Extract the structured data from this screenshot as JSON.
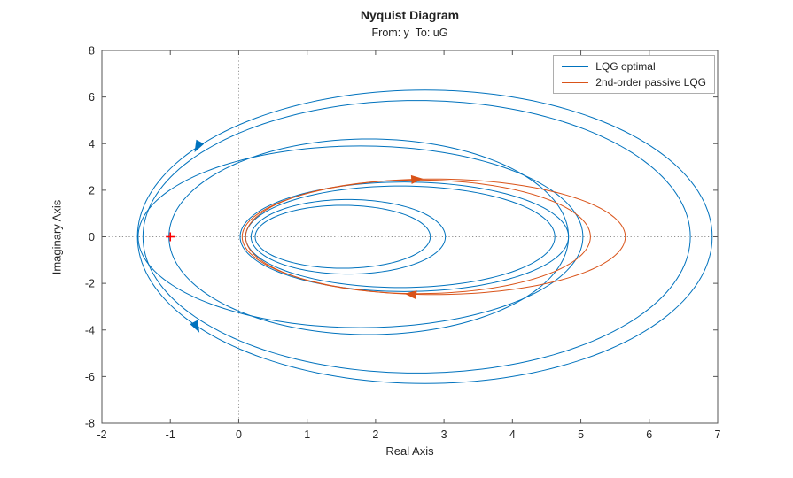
{
  "chart_data": {
    "type": "line",
    "title": "Nyquist Diagram",
    "subtitle": "From: y  To: uG",
    "xlabel": "Real Axis",
    "ylabel": "Imaginary Axis",
    "xlim": [
      -2,
      7
    ],
    "ylim": [
      -8,
      8
    ],
    "xticks": [
      -2,
      -1,
      0,
      1,
      2,
      3,
      4,
      5,
      6,
      7
    ],
    "yticks": [
      -8,
      -6,
      -4,
      -2,
      0,
      2,
      4,
      6,
      8
    ],
    "grid": false,
    "zero_lines": {
      "style": "dotted",
      "color": "#909090"
    },
    "axis_color": "#555555",
    "text_color": "#262626",
    "legend": {
      "position": "top-right",
      "entries": [
        {
          "label": "LQG optimal",
          "color": "#0072BD"
        },
        {
          "label": "2nd-order passive LQG",
          "color": "#D95319"
        }
      ]
    },
    "critical_point": {
      "x": -1,
      "y": 0,
      "marker": "+",
      "color": "#ff0000"
    },
    "series": [
      {
        "name": "LQG optimal",
        "color": "#0072BD",
        "loops": [
          {
            "cx": 2.72,
            "cy": 0,
            "rx": 4.2,
            "ry": 6.3
          },
          {
            "cx": 2.6,
            "cy": 0,
            "rx": 4.0,
            "ry": 5.85
          },
          {
            "cx": 1.9,
            "cy": 0,
            "rx": 2.92,
            "ry": 4.2
          },
          {
            "cx": 1.78,
            "cy": 0,
            "rx": 3.25,
            "ry": 3.9
          },
          {
            "cx": 2.42,
            "cy": 0,
            "rx": 2.4,
            "ry": 2.35
          },
          {
            "cx": 2.36,
            "cy": 0,
            "rx": 2.26,
            "ry": 2.18
          },
          {
            "cx": 1.6,
            "cy": 0,
            "rx": 1.42,
            "ry": 1.6
          },
          {
            "cx": 1.52,
            "cy": 0,
            "rx": 1.28,
            "ry": 1.35
          }
        ]
      },
      {
        "name": "2nd-order passive LQG",
        "color": "#D95319",
        "loops": [
          {
            "cx": 2.85,
            "cy": 0,
            "rx": 2.8,
            "ry": 2.48
          },
          {
            "cx": 2.62,
            "cy": 0,
            "rx": 2.52,
            "ry": 2.44
          }
        ]
      }
    ],
    "arrows": [
      {
        "x": -0.6,
        "y": 3.88,
        "angle": 242,
        "series": 0
      },
      {
        "x": -0.62,
        "y": -3.86,
        "angle": 298,
        "series": 0
      },
      {
        "x": 2.6,
        "y": 2.47,
        "angle": 4,
        "series": 1
      },
      {
        "x": 2.52,
        "y": -2.47,
        "angle": 174,
        "series": 1
      }
    ]
  }
}
